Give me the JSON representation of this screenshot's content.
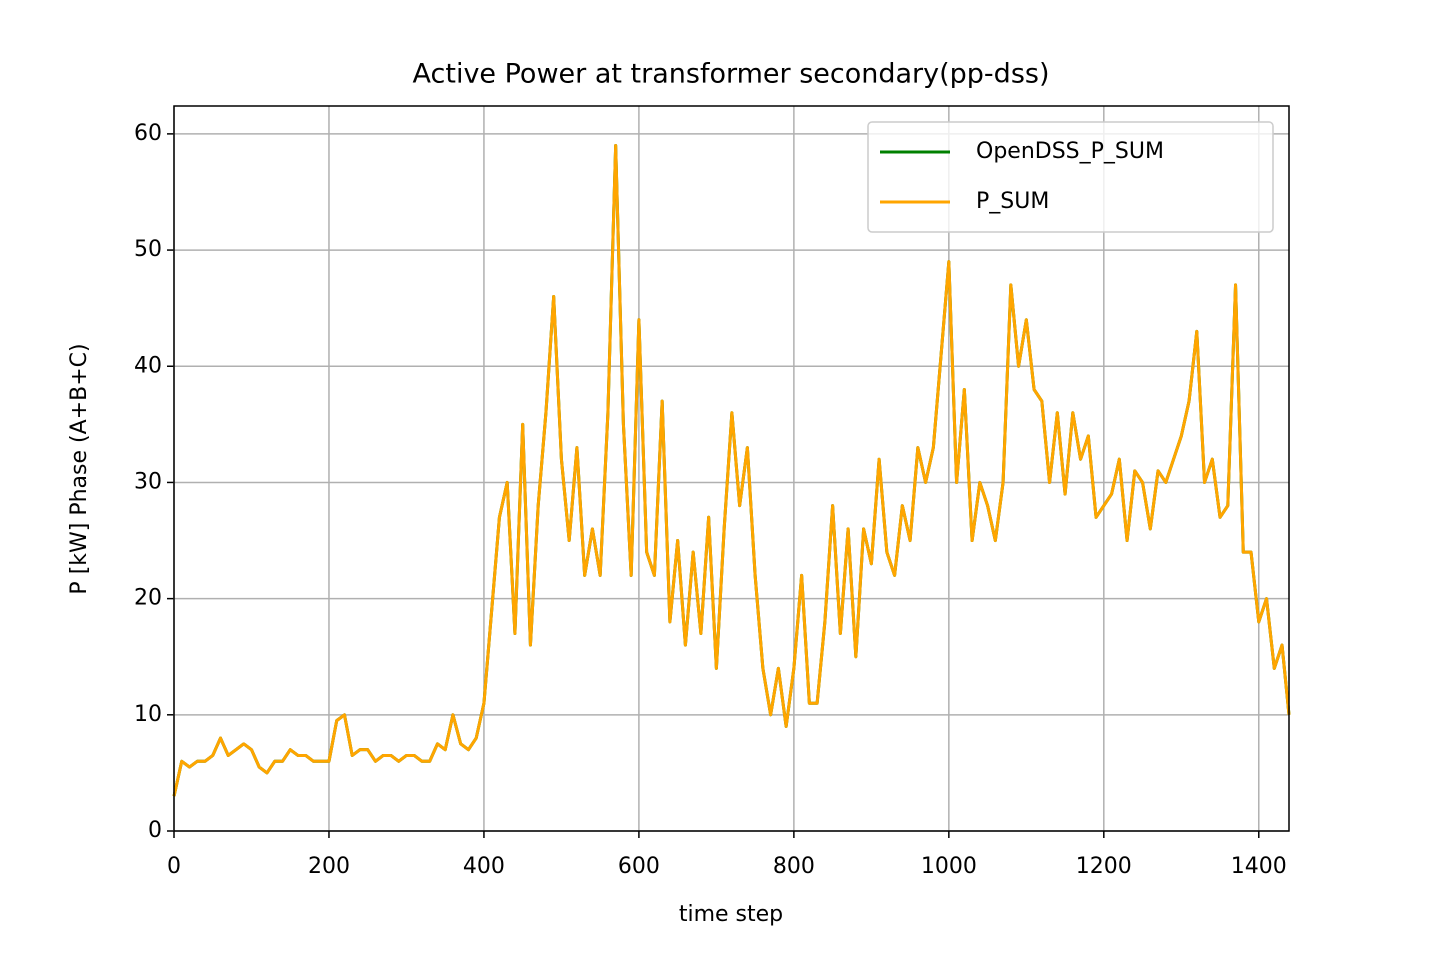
{
  "chart_data": {
    "type": "line",
    "title": "Active Power at transformer secondary(pp-dss)",
    "xlabel": "time step",
    "ylabel": "P [kW] Phase (A+B+C)",
    "x": [
      0,
      10,
      20,
      30,
      40,
      50,
      60,
      70,
      80,
      90,
      100,
      110,
      120,
      130,
      140,
      150,
      160,
      170,
      180,
      190,
      200,
      210,
      220,
      230,
      240,
      250,
      260,
      270,
      280,
      290,
      300,
      310,
      320,
      330,
      340,
      350,
      360,
      370,
      380,
      390,
      400,
      410,
      420,
      430,
      440,
      450,
      460,
      470,
      480,
      490,
      500,
      510,
      520,
      530,
      540,
      550,
      560,
      570,
      580,
      590,
      600,
      610,
      620,
      630,
      640,
      650,
      660,
      670,
      680,
      690,
      700,
      710,
      720,
      730,
      740,
      750,
      760,
      770,
      780,
      790,
      800,
      810,
      820,
      830,
      840,
      850,
      860,
      870,
      880,
      890,
      900,
      910,
      920,
      930,
      940,
      950,
      960,
      970,
      980,
      990,
      1000,
      1010,
      1020,
      1030,
      1040,
      1050,
      1060,
      1070,
      1080,
      1090,
      1100,
      1110,
      1120,
      1130,
      1140,
      1150,
      1160,
      1170,
      1180,
      1190,
      1200,
      1210,
      1220,
      1230,
      1240,
      1250,
      1260,
      1270,
      1280,
      1290,
      1300,
      1310,
      1320,
      1330,
      1340,
      1350,
      1360,
      1370,
      1380,
      1390,
      1400,
      1410,
      1420,
      1430,
      1439
    ],
    "series": [
      {
        "name": "OpenDSS_P_SUM",
        "color": "#008000",
        "values": [
          3,
          6,
          5.5,
          6,
          6,
          6.5,
          8,
          6.5,
          7,
          7.5,
          7,
          5.5,
          5,
          6,
          6,
          7,
          6.5,
          6.5,
          6,
          6,
          6,
          9.5,
          10,
          6.5,
          7,
          7,
          6,
          6.5,
          6.5,
          6,
          6.5,
          6.5,
          6,
          6,
          7.5,
          7,
          10,
          7.5,
          7,
          8,
          11,
          19,
          27,
          30,
          17,
          35,
          16,
          28,
          36,
          46,
          32,
          25,
          33,
          22,
          26,
          22,
          36,
          59,
          35,
          22,
          44,
          24,
          22,
          37,
          18,
          25,
          16,
          24,
          17,
          27,
          14,
          26,
          36,
          28,
          33,
          22,
          14,
          10,
          14,
          9,
          14,
          22,
          11,
          11,
          18,
          28,
          17,
          26,
          15,
          26,
          23,
          32,
          24,
          22,
          28,
          25,
          33,
          30,
          33,
          41,
          49,
          30,
          38,
          25,
          30,
          28,
          25,
          30,
          47,
          40,
          44,
          38,
          37,
          30,
          36,
          29,
          36,
          32,
          34,
          27,
          28,
          29,
          32,
          25,
          31,
          30,
          26,
          31,
          30,
          32,
          34,
          37,
          43,
          30,
          32,
          27,
          28,
          47,
          24,
          24,
          18,
          20,
          14,
          16,
          10
        ]
      },
      {
        "name": "P_SUM",
        "color": "#ffa500",
        "values": [
          3,
          6,
          5.5,
          6,
          6,
          6.5,
          8,
          6.5,
          7,
          7.5,
          7,
          5.5,
          5,
          6,
          6,
          7,
          6.5,
          6.5,
          6,
          6,
          6,
          9.5,
          10,
          6.5,
          7,
          7,
          6,
          6.5,
          6.5,
          6,
          6.5,
          6.5,
          6,
          6,
          7.5,
          7,
          10,
          7.5,
          7,
          8,
          11,
          19,
          27,
          30,
          17,
          35,
          16,
          28,
          36,
          46,
          32,
          25,
          33,
          22,
          26,
          22,
          36,
          59,
          35,
          22,
          44,
          24,
          22,
          37,
          18,
          25,
          16,
          24,
          17,
          27,
          14,
          26,
          36,
          28,
          33,
          22,
          14,
          10,
          14,
          9,
          14,
          22,
          11,
          11,
          18,
          28,
          17,
          26,
          15,
          26,
          23,
          32,
          24,
          22,
          28,
          25,
          33,
          30,
          33,
          41,
          49,
          30,
          38,
          25,
          30,
          28,
          25,
          30,
          47,
          40,
          44,
          38,
          37,
          30,
          36,
          29,
          36,
          32,
          34,
          27,
          28,
          29,
          32,
          25,
          31,
          30,
          26,
          31,
          30,
          32,
          34,
          37,
          43,
          30,
          32,
          27,
          28,
          47,
          24,
          24,
          18,
          20,
          14,
          16,
          10
        ]
      }
    ],
    "xlim": [
      0,
      1439
    ],
    "xticks": [
      0,
      200,
      400,
      600,
      800,
      1000,
      1200,
      1400
    ],
    "ylim": [
      0,
      62.4
    ],
    "yticks": [
      0,
      10,
      20,
      30,
      40,
      50,
      60
    ],
    "grid": true,
    "legend": "upper right"
  }
}
